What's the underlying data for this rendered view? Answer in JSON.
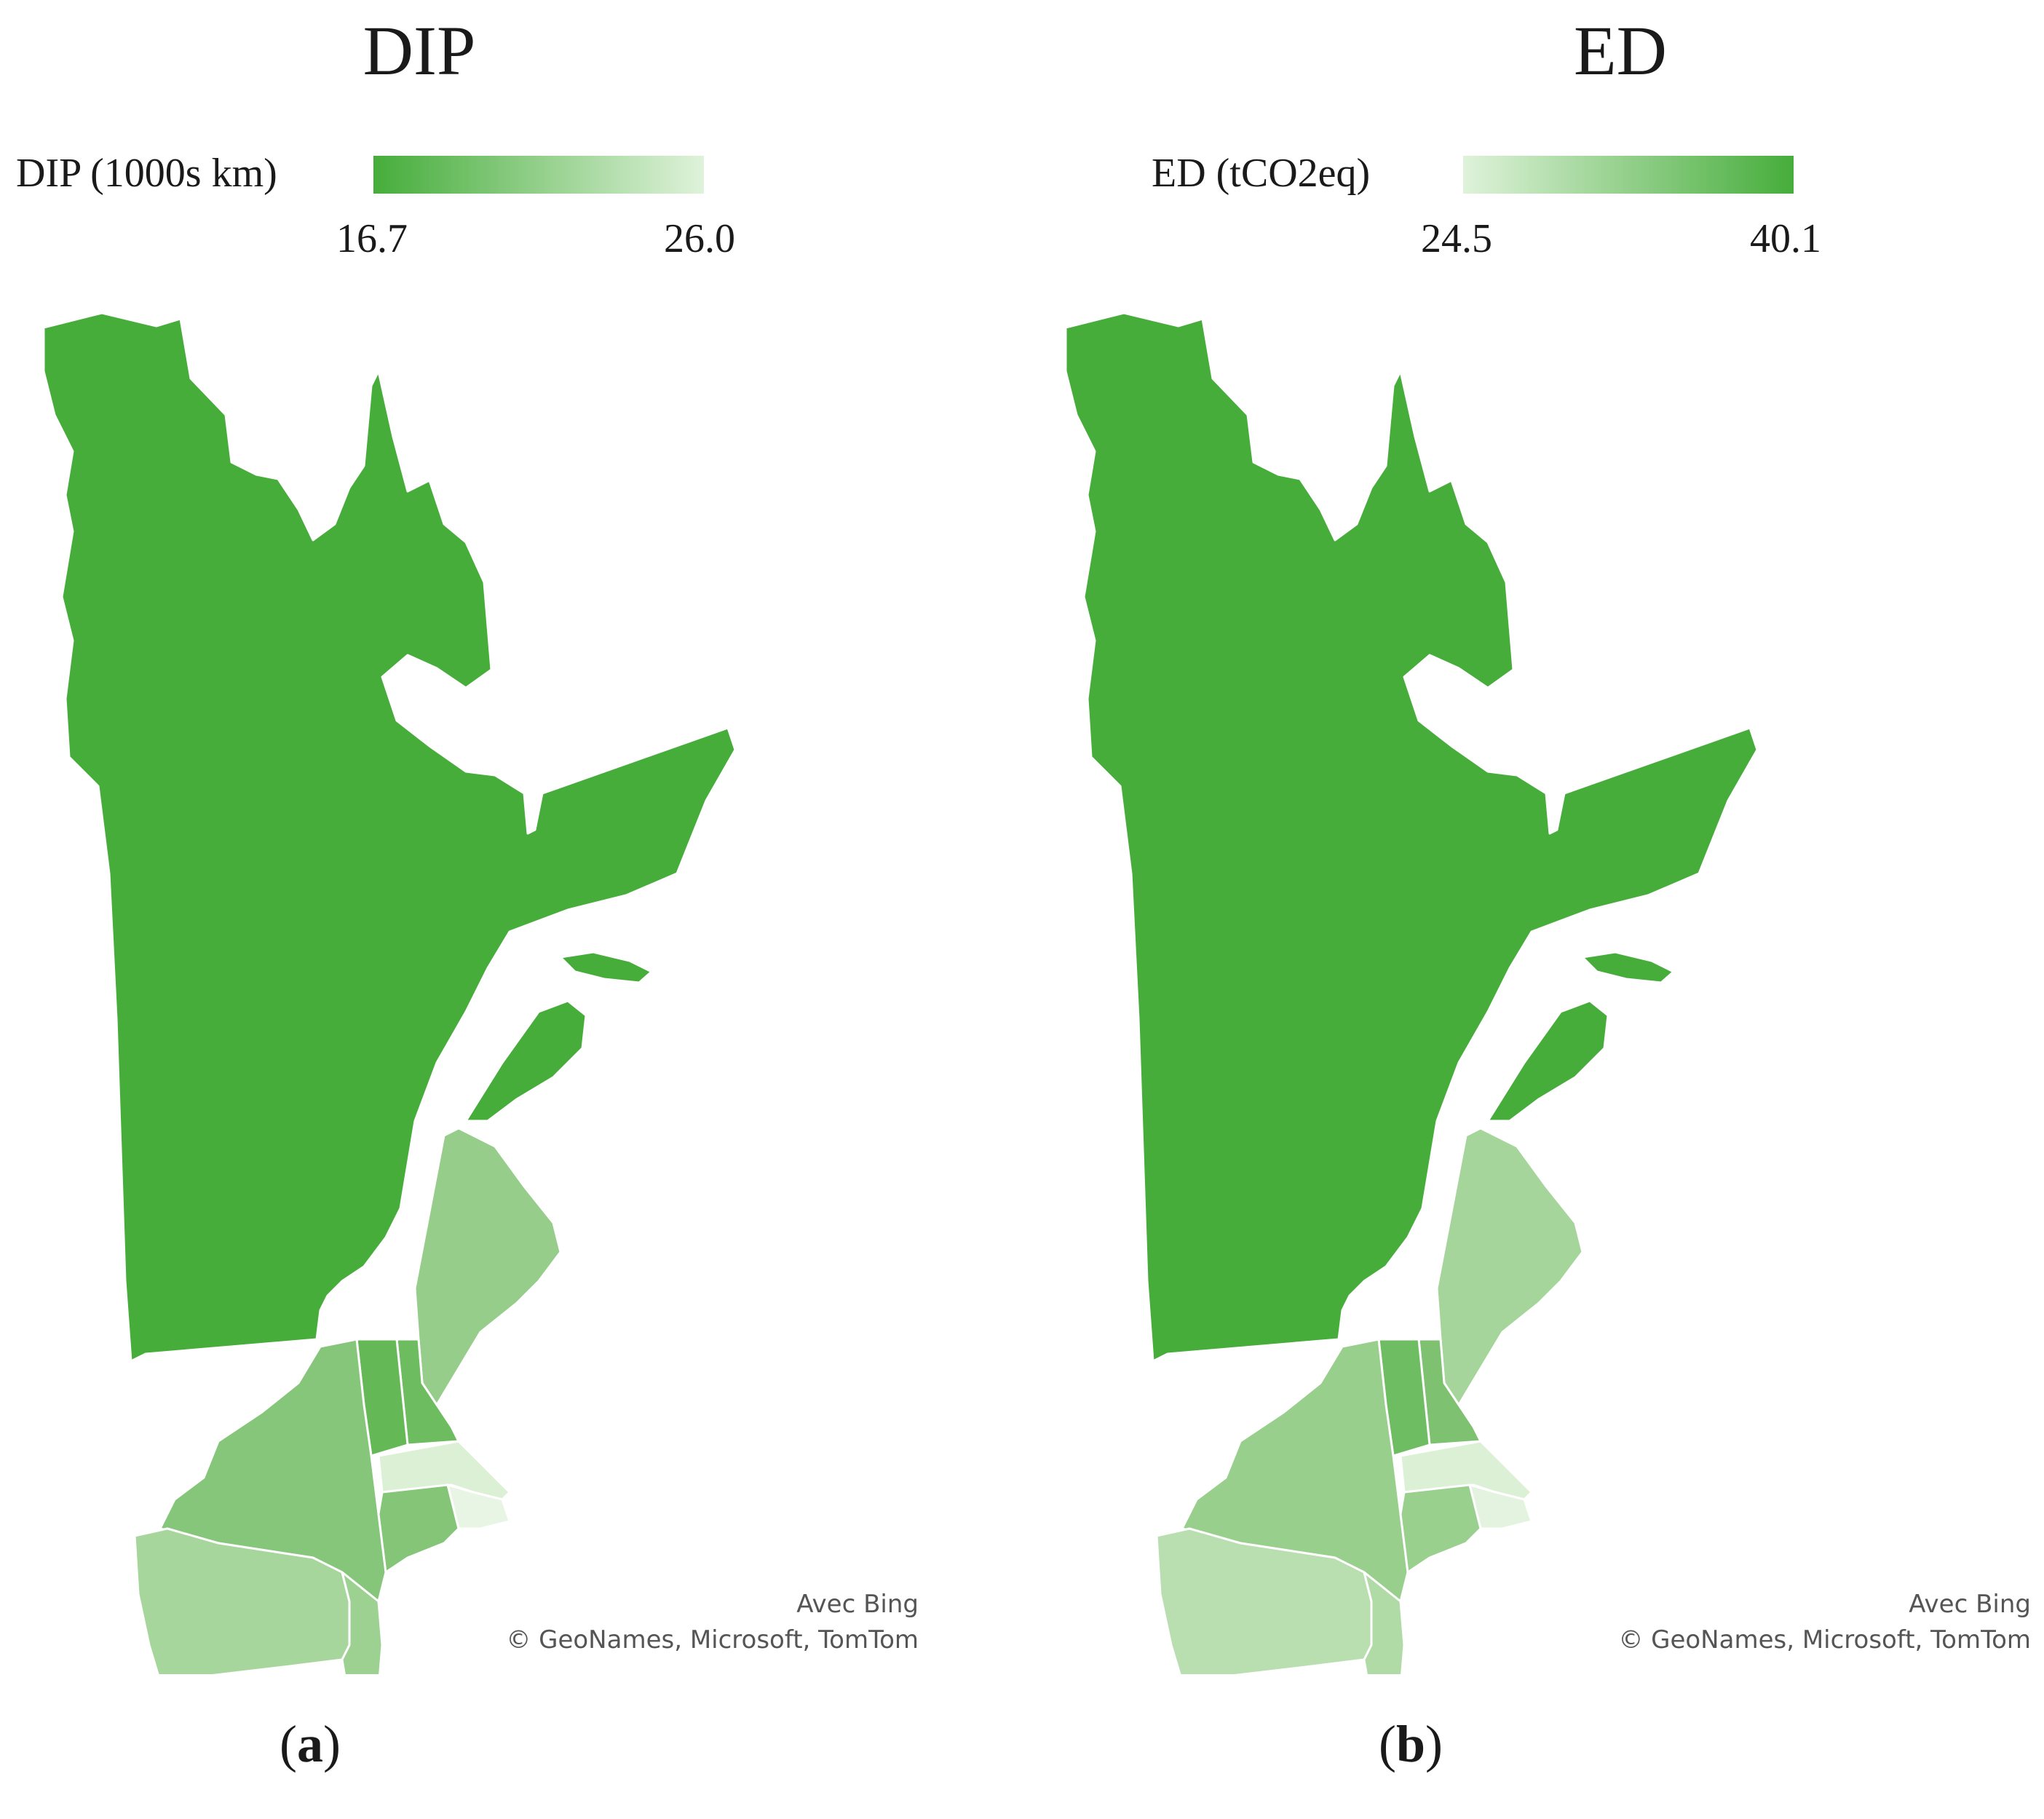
{
  "colors": {
    "max_green": "#46ad3b",
    "min_green": "#dff2da"
  },
  "maps": [
    {
      "title": "DIP",
      "legend": {
        "label": "DIP (1000s km)",
        "min": "16.7",
        "max": "26.0",
        "gradient": "dark-to-light"
      },
      "credit": {
        "line1": "Avec Bing",
        "line2": "© GeoNames, Microsoft, TomTom"
      },
      "panel_label_open": "(",
      "panel_label_letter": "a",
      "panel_label_close": ")",
      "regions": [
        {
          "name": "Quebec",
          "fill": "#46ad3b"
        },
        {
          "name": "Maine",
          "fill": "#96cd8a"
        },
        {
          "name": "New Hampshire",
          "fill": "#6ebc60"
        },
        {
          "name": "Vermont",
          "fill": "#64b856"
        },
        {
          "name": "New York",
          "fill": "#86c67a"
        },
        {
          "name": "Massachusetts",
          "fill": "#dcf0d6"
        },
        {
          "name": "Rhode Island",
          "fill": "#e8f5e4"
        },
        {
          "name": "Connecticut",
          "fill": "#84c577"
        },
        {
          "name": "Pennsylvania",
          "fill": "#a7d69c"
        },
        {
          "name": "New Jersey",
          "fill": "#9dd191"
        }
      ]
    },
    {
      "title": "ED",
      "legend": {
        "label": "ED (tCO2eq)",
        "min": "24.5",
        "max": "40.1",
        "gradient": "light-to-dark"
      },
      "credit": {
        "line1": "Avec Bing",
        "line2": "© GeoNames, Microsoft, TomTom"
      },
      "panel_label_open": "(",
      "panel_label_letter": "b",
      "panel_label_close": ")",
      "regions": [
        {
          "name": "Quebec",
          "fill": "#46ad3b"
        },
        {
          "name": "Maine",
          "fill": "#a5d59a"
        },
        {
          "name": "New Hampshire",
          "fill": "#7ec271"
        },
        {
          "name": "Vermont",
          "fill": "#6fbd62"
        },
        {
          "name": "New York",
          "fill": "#99cf8d"
        },
        {
          "name": "Massachusetts",
          "fill": "#dcf0d6"
        },
        {
          "name": "Rhode Island",
          "fill": "#e3f3df"
        },
        {
          "name": "Connecticut",
          "fill": "#9ad08e"
        },
        {
          "name": "Pennsylvania",
          "fill": "#b9deb0"
        },
        {
          "name": "New Jersey",
          "fill": "#b0da a6"
        }
      ]
    }
  ]
}
